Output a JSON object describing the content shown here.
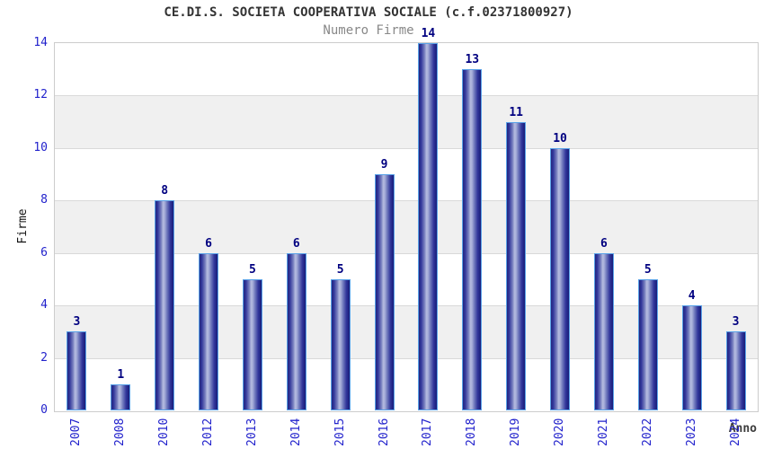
{
  "chart_data": {
    "type": "bar",
    "title": "CE.DI.S. SOCIETA COOPERATIVA SOCIALE (c.f.02371800927)",
    "subtitle": "Numero Firme",
    "xlabel": "Anno",
    "ylabel": "Firme",
    "categories": [
      "2007",
      "2008",
      "2010",
      "2012",
      "2013",
      "2014",
      "2015",
      "2016",
      "2017",
      "2018",
      "2019",
      "2020",
      "2021",
      "2022",
      "2023",
      "2024"
    ],
    "values": [
      3,
      1,
      8,
      6,
      5,
      6,
      5,
      9,
      14,
      13,
      11,
      10,
      6,
      5,
      4,
      3
    ],
    "ylim": [
      0,
      14
    ],
    "yticks": [
      0,
      2,
      4,
      6,
      8,
      10,
      12,
      14
    ],
    "grid": "horizontal gridlines at even values with alternating gray bands (2-4, 6-8, 10-12)",
    "legend": "none",
    "colors": {
      "tick_label": "#2222cc",
      "value_label": "#000080",
      "bar_border": "#59a2e8",
      "bar_edge_dark": "#1c2086",
      "bar_center_light": "#b2b8e0",
      "band_gray": "#f0f0f0",
      "band_white": "#ffffff",
      "plot_border": "#cccccc",
      "gridline": "#d9d9d9",
      "title_color": "#333333",
      "subtitle_color": "#888888"
    }
  }
}
